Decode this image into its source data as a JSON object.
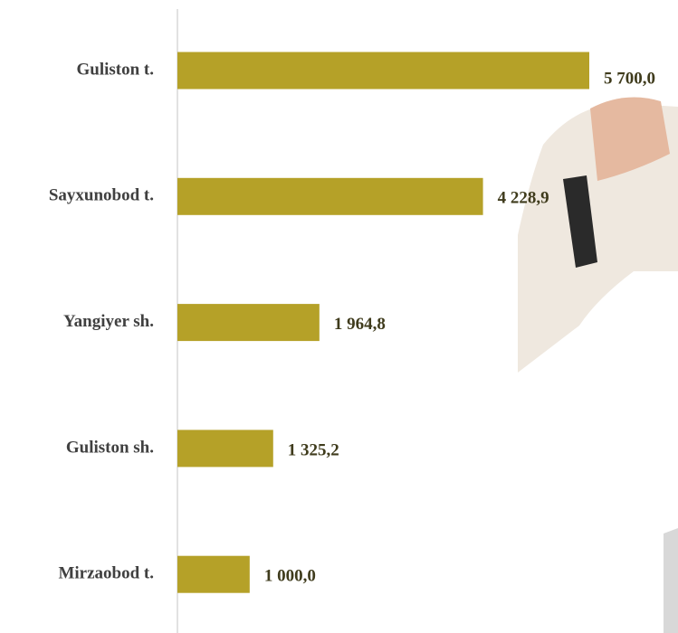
{
  "chart_data": {
    "type": "bar",
    "orientation": "horizontal",
    "categories": [
      "Guliston t.",
      "Sayxunobod t.",
      "Yangiyer sh.",
      "Guliston sh.",
      "Mirzaobod t."
    ],
    "values": [
      5700.0,
      4228.9,
      1964.8,
      1325.2,
      1000.0
    ],
    "value_labels": [
      "5 700,0",
      "4 228,9",
      "1 964,8",
      "1 325,2",
      "1 000,0"
    ],
    "color": "#b5a128"
  }
}
